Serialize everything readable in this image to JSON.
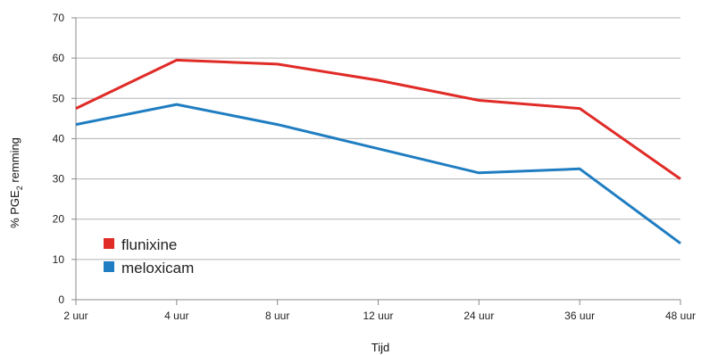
{
  "chart_data": {
    "type": "line",
    "categories": [
      "2 uur",
      "4 uur",
      "8 uur",
      "12 uur",
      "24 uur",
      "36 uur",
      "48 uur"
    ],
    "series": [
      {
        "name": "flunixine",
        "color": "#e02b27",
        "values": [
          47.5,
          59.5,
          58.5,
          54.5,
          49.5,
          47.5,
          30
        ]
      },
      {
        "name": "meloxicam",
        "color": "#1f7dc1",
        "values": [
          43.5,
          48.5,
          43.5,
          37.5,
          31.5,
          32.5,
          14
        ]
      }
    ],
    "xlabel": "Tijd",
    "ylabel": {
      "prefix": "% PGE",
      "subscript": "2",
      "suffix": " remming"
    },
    "ylim": [
      0,
      70
    ],
    "yticks": [
      "0",
      "10",
      "20",
      "30",
      "40",
      "50",
      "60",
      "70"
    ],
    "grid": true,
    "legend_position": "bottom-left",
    "colors": {
      "grid": "#b3b3b3",
      "axis": "#888888"
    }
  }
}
